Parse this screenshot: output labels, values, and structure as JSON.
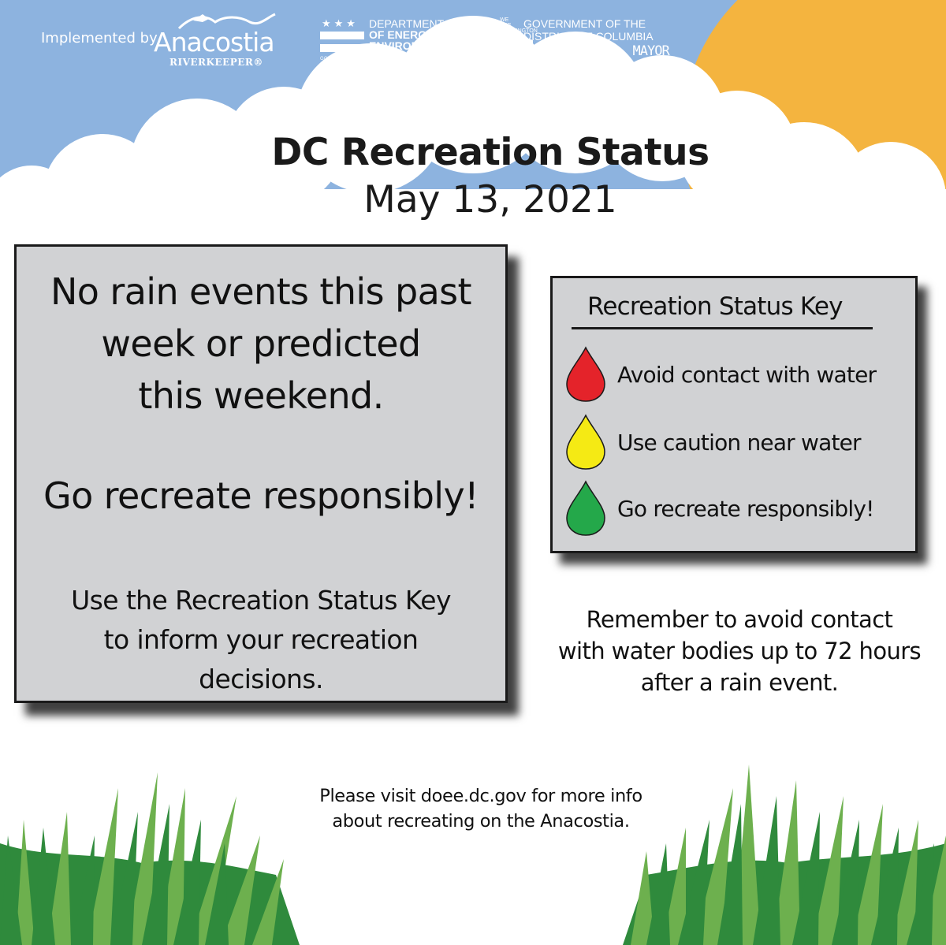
{
  "header": {
    "implemented_by": "Implemented by",
    "anacostia_name": "Anacostia",
    "anacostia_sub": "RIVERKEEPER®",
    "doee_line1": "DEPARTMENT",
    "doee_line2": "OF ENERGY &",
    "doee_line3": "ENVIRONMENT",
    "doee_footer": "GOVERNMENT OF THE DISTRICT OF COLUMBIA",
    "dcgov_we_are": "WE ARE WASHINGTON",
    "dcgov_dc": "DC",
    "dcgov_line1": "GOVERNMENT OF THE",
    "dcgov_line2": "DISTRICT OF COLUMBIA",
    "dcgov_line3": "MURIEL BOWSER, MAYOR"
  },
  "title": "DC Recreation Status",
  "date": "May 13, 2021",
  "main": {
    "line1": "No rain events this past",
    "line2": "week or predicted",
    "line3": "this weekend.",
    "advice": "Go recreate responsibly!",
    "key_line1": "Use the Recreation Status Key",
    "key_line2": "to inform your recreation",
    "key_line3": "decisions."
  },
  "key": {
    "title": "Recreation Status Key",
    "items": [
      {
        "label": "Avoid contact with water",
        "color": "#e4232a",
        "icon": "red-drop-icon"
      },
      {
        "label": "Use caution near water",
        "color": "#f5ea14",
        "icon": "yellow-drop-icon"
      },
      {
        "label": "Go recreate responsibly!",
        "color": "#24a84a",
        "icon": "green-drop-icon"
      }
    ]
  },
  "reminder": {
    "line1": "Remember to avoid contact",
    "line2": "with water bodies up to 72 hours",
    "line3": "after a rain event."
  },
  "footer": {
    "line1": "Please visit doee.dc.gov for more info",
    "line2": "about recreating on the Anacostia."
  },
  "colors": {
    "sky": "#8db3df",
    "sun": "#f4b43f",
    "panel": "#d1d2d4",
    "grass_dark": "#2f8a3c",
    "grass_light": "#6db04e"
  }
}
